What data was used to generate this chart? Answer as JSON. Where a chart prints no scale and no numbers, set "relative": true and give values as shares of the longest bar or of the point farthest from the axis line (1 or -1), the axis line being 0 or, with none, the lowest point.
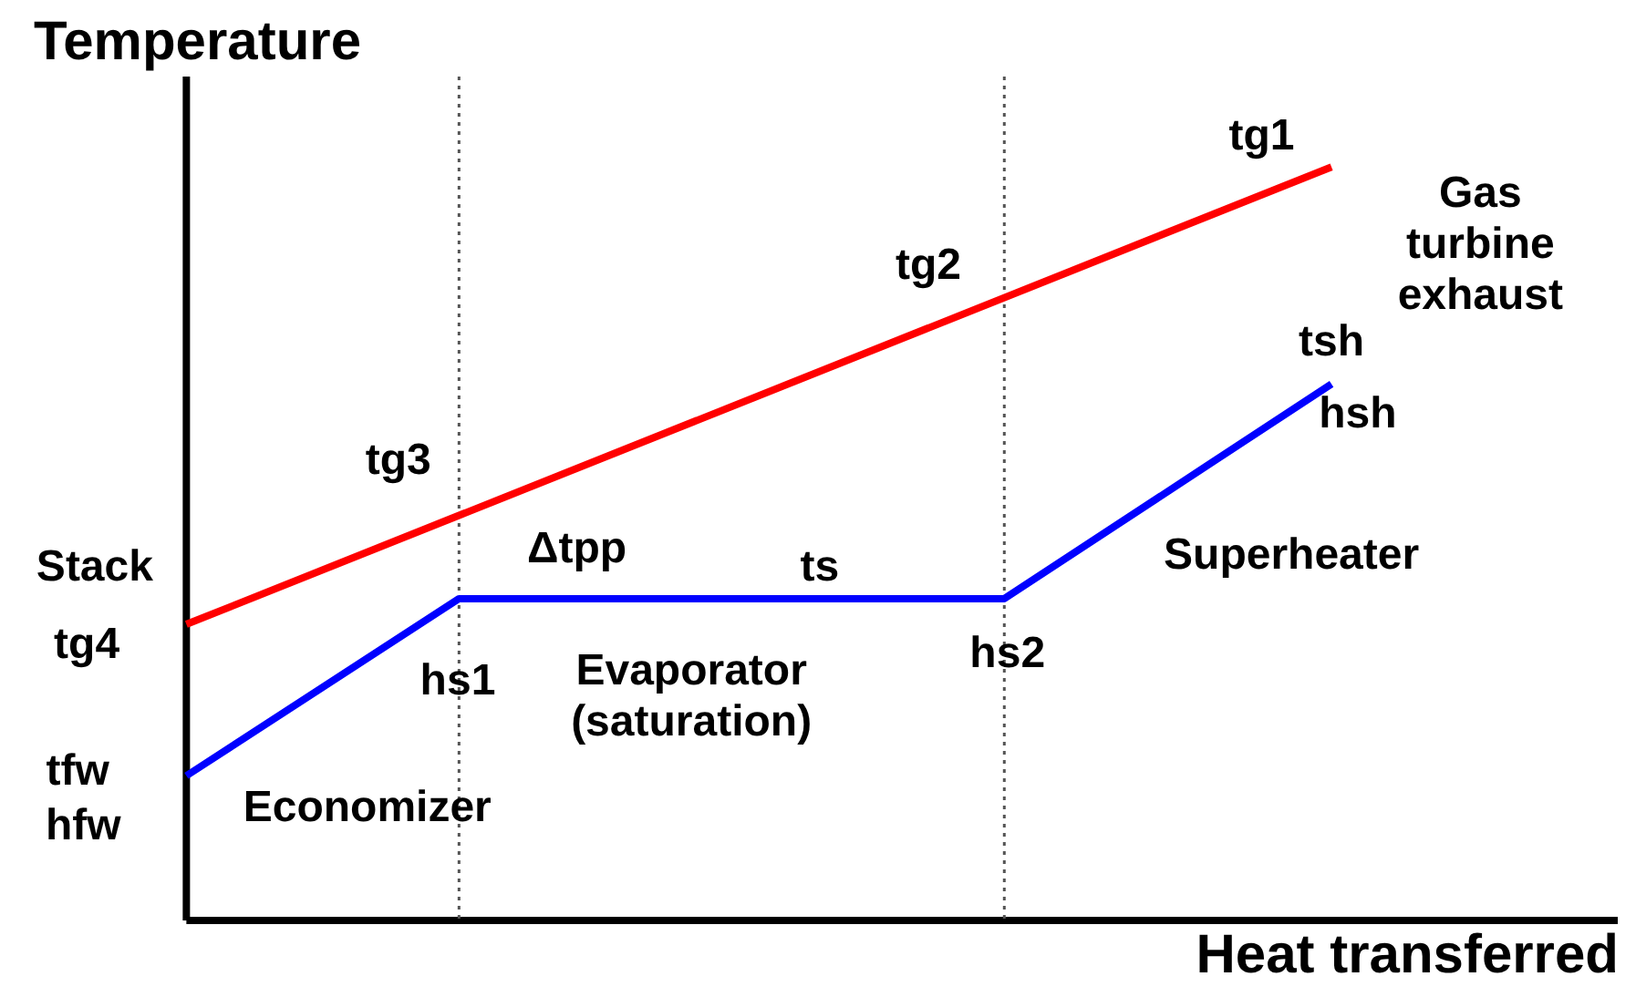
{
  "chart_data": {
    "type": "line",
    "relative": true,
    "xlabel": "Heat transferred",
    "ylabel": "Temperature",
    "categories": [
      null,
      null,
      null,
      null,
      null,
      null,
      null,
      null,
      null,
      null,
      null,
      null,
      null,
      null,
      null,
      null,
      null,
      null,
      null,
      null,
      null,
      null
    ],
    "series": [
      {
        "color": "#ff0000",
        "values": [
          0.393,
          null,
          null,
          null,
          null,
          null,
          null,
          null,
          null,
          null,
          null,
          null,
          null,
          null,
          null,
          null,
          null,
          null,
          null,
          null,
          null,
          1
        ]
      },
      {
        "color": "#0000ff",
        "values": [
          0.192,
          null,
          null,
          null,
          null,
          0.427,
          null,
          null,
          null,
          null,
          null,
          null,
          null,
          null,
          null,
          0.427,
          null,
          null,
          null,
          null,
          null,
          0.712
        ]
      }
    ],
    "annotations": [
      "tg1",
      "Gas\nturbine\nexhaust",
      "tg2",
      "tsh",
      "hsh",
      "tg3",
      "Stack",
      "Δtpp",
      "ts",
      "Superheater",
      "tg4",
      "hs1",
      "Evaporator\n(saturation)",
      "hs2",
      "tfw",
      "hfw",
      "Economizer"
    ],
    "grid": false,
    "marker": "none",
    "line_style": "solid"
  }
}
